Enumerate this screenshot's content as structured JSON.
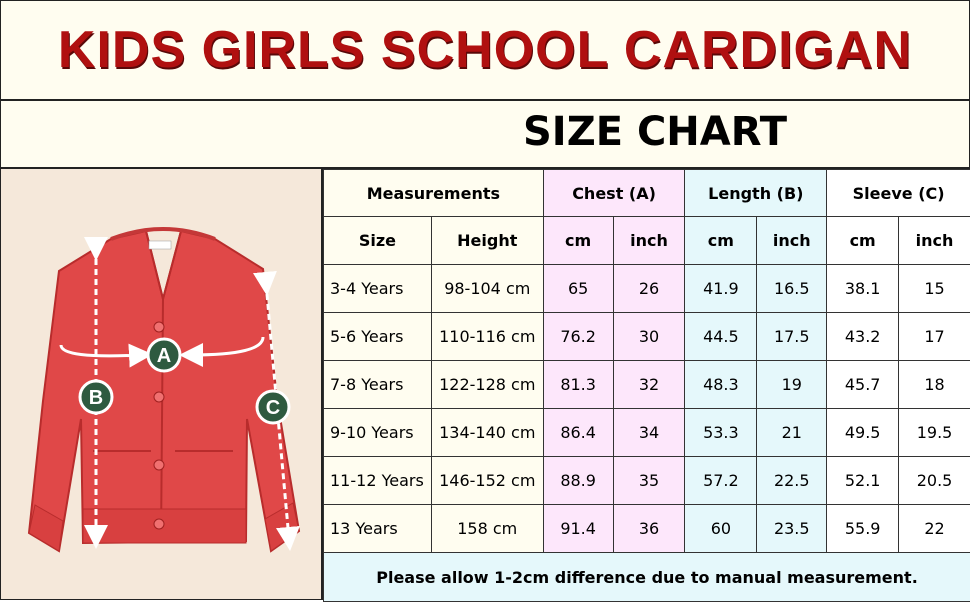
{
  "title": "KIDS GIRLS SCHOOL CARDIGAN",
  "subtitle": "SIZE CHART",
  "headers": {
    "measurements": "Measurements",
    "chest": "Chest (A)",
    "length": "Length (B)",
    "sleeve": "Sleeve (C)"
  },
  "subheaders": {
    "size": "Size",
    "height": "Height",
    "chest_cm": "cm",
    "chest_inch": "inch",
    "length_cm": "cm",
    "length_inch": "inch",
    "sleeve_cm": "cm",
    "sleeve_inch": "inch"
  },
  "rows": [
    {
      "size": "3-4 Years",
      "height": "98-104 cm",
      "chest_cm": "65",
      "chest_inch": "26",
      "length_cm": "41.9",
      "length_inch": "16.5",
      "sleeve_cm": "38.1",
      "sleeve_inch": "15"
    },
    {
      "size": "5-6 Years",
      "height": "110-116 cm",
      "chest_cm": "76.2",
      "chest_inch": "30",
      "length_cm": "44.5",
      "length_inch": "17.5",
      "sleeve_cm": "43.2",
      "sleeve_inch": "17"
    },
    {
      "size": "7-8 Years",
      "height": "122-128 cm",
      "chest_cm": "81.3",
      "chest_inch": "32",
      "length_cm": "48.3",
      "length_inch": "19",
      "sleeve_cm": "45.7",
      "sleeve_inch": "18"
    },
    {
      "size": "9-10 Years",
      "height": "134-140 cm",
      "chest_cm": "86.4",
      "chest_inch": "34",
      "length_cm": "53.3",
      "length_inch": "21",
      "sleeve_cm": "49.5",
      "sleeve_inch": "19.5"
    },
    {
      "size": "11-12 Years",
      "height": "146-152 cm",
      "chest_cm": "88.9",
      "chest_inch": "35",
      "length_cm": "57.2",
      "length_inch": "22.5",
      "sleeve_cm": "52.1",
      "sleeve_inch": "20.5"
    },
    {
      "size": "13 Years",
      "height": "158 cm",
      "chest_cm": "91.4",
      "chest_inch": "36",
      "length_cm": "60",
      "length_inch": "23.5",
      "sleeve_cm": "55.9",
      "sleeve_inch": "22"
    }
  ],
  "note": "Please allow 1-2cm difference due to manual measurement.",
  "markers": {
    "a": "A",
    "b": "B",
    "c": "C"
  },
  "colors": {
    "title_red": "#b01010",
    "header_red": "#c01818",
    "cardigan_red": "#e04848",
    "marker_green": "#2e5a40",
    "chest_bg": "#fde7fb",
    "length_bg": "#e5f8fb",
    "cream_bg": "#fffdf0"
  }
}
